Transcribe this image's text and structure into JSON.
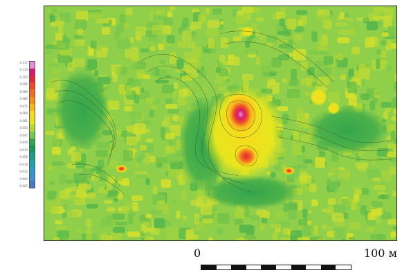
{
  "legend": {
    "colors": [
      "#e58fd6",
      "#d61a6d",
      "#e8243a",
      "#ef4a2a",
      "#f26d20",
      "#f58f1c",
      "#f8b51c",
      "#f8db1c",
      "#e6e51e",
      "#b6d836",
      "#7cc84c",
      "#33a54c",
      "#129b56",
      "#179e86",
      "#1ea3a8",
      "#2a9fc5",
      "#3e8fd0",
      "#4a78c8"
    ],
    "labels": [
      "0.117",
      "0.110",
      "0.103",
      "0.096",
      "0.089",
      "0.082",
      "0.075",
      "0.068",
      "0.061",
      "0.054",
      "0.047",
      "0.040",
      "0.033",
      "0.026",
      "0.019",
      "0.012",
      "0.005",
      "-0.002"
    ]
  },
  "scale": {
    "start_label": "0",
    "end_label": "100 м",
    "segments": 10
  },
  "map": {
    "base_color": "#8fcf4a"
  }
}
